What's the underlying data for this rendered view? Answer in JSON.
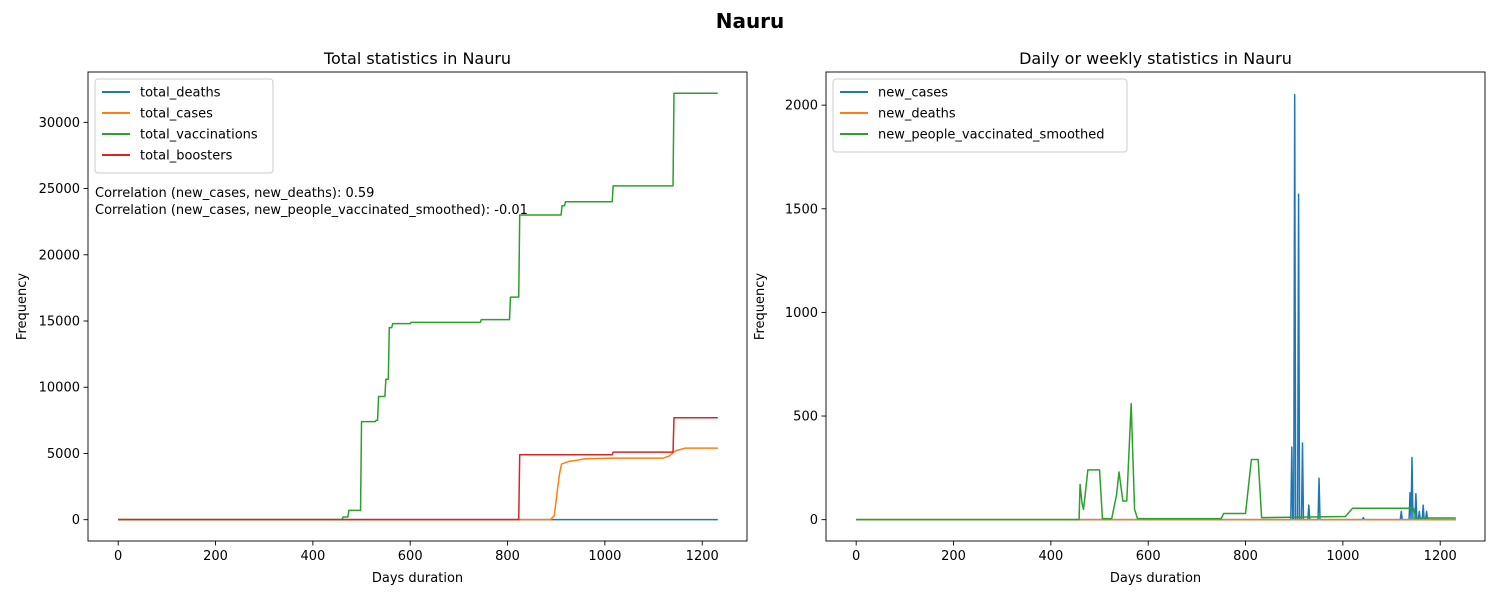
{
  "suptitle": "Nauru",
  "chart_data": [
    {
      "type": "line",
      "title": "Total statistics in Nauru",
      "xlabel": "Days duration",
      "ylabel": "Frequency",
      "xlim": [
        -62,
        1292
      ],
      "ylim": [
        -1610,
        33800
      ],
      "xticks": [
        0,
        200,
        400,
        600,
        800,
        1000,
        1200
      ],
      "yticks": [
        0,
        5000,
        10000,
        15000,
        20000,
        25000,
        30000
      ],
      "legend_position": "upper-left",
      "annotations": [
        "Correlation (new_cases, new_deaths): 0.59",
        "Correlation (new_cases, new_people_vaccinated_smoothed): -0.01"
      ],
      "series": [
        {
          "name": "total_deaths",
          "color": "#1f77b4",
          "points": [
            [
              0,
              0
            ],
            [
              1232,
              0
            ]
          ]
        },
        {
          "name": "total_cases",
          "color": "#ff7f0e",
          "points": [
            [
              0,
              0
            ],
            [
              888,
              0
            ],
            [
              896,
              300
            ],
            [
              903,
              2400
            ],
            [
              907,
              3500
            ],
            [
              911,
              4200
            ],
            [
              919,
              4300
            ],
            [
              926,
              4400
            ],
            [
              945,
              4500
            ],
            [
              958,
              4600
            ],
            [
              1020,
              4650
            ],
            [
              1120,
              4650
            ],
            [
              1132,
              4800
            ],
            [
              1145,
              5200
            ],
            [
              1155,
              5300
            ],
            [
              1165,
              5400
            ],
            [
              1232,
              5400
            ]
          ]
        },
        {
          "name": "total_vaccinations",
          "color": "#2ca02c",
          "points": [
            [
              0,
              0
            ],
            [
              460,
              0
            ],
            [
              462,
              200
            ],
            [
              472,
              200
            ],
            [
              474,
              700
            ],
            [
              498,
              700
            ],
            [
              500,
              7400
            ],
            [
              528,
              7400
            ],
            [
              530,
              7500
            ],
            [
              533,
              7500
            ],
            [
              535,
              9300
            ],
            [
              548,
              9300
            ],
            [
              550,
              10600
            ],
            [
              555,
              10600
            ],
            [
              557,
              14500
            ],
            [
              562,
              14500
            ],
            [
              564,
              14800
            ],
            [
              600,
              14800
            ],
            [
              602,
              14900
            ],
            [
              744,
              14900
            ],
            [
              746,
              15100
            ],
            [
              804,
              15100
            ],
            [
              806,
              16800
            ],
            [
              823,
              16800
            ],
            [
              825,
              23000
            ],
            [
              910,
              23000
            ],
            [
              912,
              23700
            ],
            [
              917,
              23700
            ],
            [
              919,
              24000
            ],
            [
              1015,
              24000
            ],
            [
              1017,
              25200
            ],
            [
              1140,
              25200
            ],
            [
              1142,
              32200
            ],
            [
              1232,
              32200
            ]
          ]
        },
        {
          "name": "total_boosters",
          "color": "#d62728",
          "points": [
            [
              0,
              0
            ],
            [
              823,
              0
            ],
            [
              825,
              4900
            ],
            [
              1015,
              4900
            ],
            [
              1017,
              5100
            ],
            [
              1140,
              5100
            ],
            [
              1142,
              7700
            ],
            [
              1232,
              7700
            ]
          ]
        }
      ]
    },
    {
      "type": "line",
      "title": "Daily or weekly statistics in Nauru",
      "xlabel": "Days duration",
      "ylabel": "Frequency",
      "xlim": [
        -62,
        1292
      ],
      "ylim": [
        -103,
        2160
      ],
      "xticks": [
        0,
        200,
        400,
        600,
        800,
        1000,
        1200
      ],
      "yticks": [
        0,
        500,
        1000,
        1500,
        2000
      ],
      "legend_position": "upper-left",
      "series": [
        {
          "name": "new_cases",
          "color": "#1f77b4",
          "points": [
            [
              0,
              0
            ],
            [
              893,
              0
            ],
            [
              895,
              350
            ],
            [
              897,
              0
            ],
            [
              899,
              0
            ],
            [
              901,
              2050
            ],
            [
              903,
              0
            ],
            [
              907,
              0
            ],
            [
              909,
              1570
            ],
            [
              911,
              0
            ],
            [
              915,
              0
            ],
            [
              917,
              370
            ],
            [
              919,
              0
            ],
            [
              928,
              0
            ],
            [
              930,
              70
            ],
            [
              932,
              0
            ],
            [
              949,
              0
            ],
            [
              951,
              200
            ],
            [
              953,
              0
            ],
            [
              1040,
              0
            ],
            [
              1042,
              10
            ],
            [
              1044,
              0
            ],
            [
              1118,
              0
            ],
            [
              1120,
              40
            ],
            [
              1122,
              0
            ],
            [
              1136,
              0
            ],
            [
              1138,
              130
            ],
            [
              1140,
              0
            ],
            [
              1142,
              300
            ],
            [
              1144,
              0
            ],
            [
              1148,
              0
            ],
            [
              1150,
              125
            ],
            [
              1152,
              0
            ],
            [
              1155,
              0
            ],
            [
              1157,
              40
            ],
            [
              1159,
              0
            ],
            [
              1163,
              0
            ],
            [
              1165,
              70
            ],
            [
              1167,
              0
            ],
            [
              1170,
              0
            ],
            [
              1172,
              40
            ],
            [
              1174,
              0
            ],
            [
              1232,
              0
            ]
          ]
        },
        {
          "name": "new_deaths",
          "color": "#ff7f0e",
          "points": [
            [
              0,
              0
            ],
            [
              1232,
              0
            ]
          ]
        },
        {
          "name": "new_people_vaccinated_smoothed",
          "color": "#2ca02c",
          "points": [
            [
              0,
              0
            ],
            [
              458,
              0
            ],
            [
              460,
              170
            ],
            [
              464,
              80
            ],
            [
              467,
              50
            ],
            [
              470,
              110
            ],
            [
              476,
              240
            ],
            [
              500,
              240
            ],
            [
              506,
              5
            ],
            [
              525,
              5
            ],
            [
              535,
              120
            ],
            [
              540,
              230
            ],
            [
              548,
              90
            ],
            [
              556,
              90
            ],
            [
              565,
              560
            ],
            [
              572,
              50
            ],
            [
              578,
              5
            ],
            [
              750,
              5
            ],
            [
              755,
              30
            ],
            [
              800,
              30
            ],
            [
              812,
              290
            ],
            [
              826,
              290
            ],
            [
              833,
              10
            ],
            [
              1005,
              15
            ],
            [
              1020,
              55
            ],
            [
              1145,
              55
            ],
            [
              1150,
              8
            ],
            [
              1232,
              8
            ]
          ]
        }
      ]
    }
  ]
}
